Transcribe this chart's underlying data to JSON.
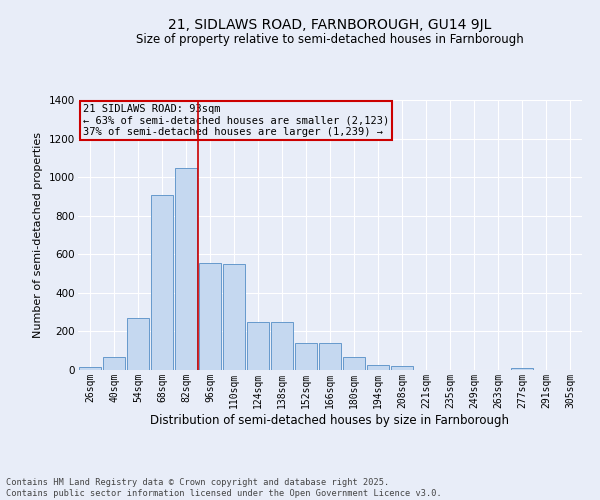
{
  "title_line1": "21, SIDLAWS ROAD, FARNBOROUGH, GU14 9JL",
  "title_line2": "Size of property relative to semi-detached houses in Farnborough",
  "xlabel": "Distribution of semi-detached houses by size in Farnborough",
  "ylabel": "Number of semi-detached properties",
  "categories": [
    "26sqm",
    "40sqm",
    "54sqm",
    "68sqm",
    "82sqm",
    "96sqm",
    "110sqm",
    "124sqm",
    "138sqm",
    "152sqm",
    "166sqm",
    "180sqm",
    "194sqm",
    "208sqm",
    "221sqm",
    "235sqm",
    "249sqm",
    "263sqm",
    "277sqm",
    "291sqm",
    "305sqm"
  ],
  "values": [
    18,
    70,
    270,
    905,
    1045,
    555,
    550,
    250,
    250,
    140,
    140,
    65,
    25,
    20,
    0,
    0,
    0,
    0,
    8,
    0,
    0
  ],
  "bar_color": "#c5d8f0",
  "bar_edge_color": "#6699cc",
  "bg_color": "#e8edf8",
  "grid_color": "#ffffff",
  "vline_color": "#cc0000",
  "annotation_title": "21 SIDLAWS ROAD: 93sqm",
  "annotation_line1": "← 63% of semi-detached houses are smaller (2,123)",
  "annotation_line2": "37% of semi-detached houses are larger (1,239) →",
  "annotation_box_color": "#cc0000",
  "ylim": [
    0,
    1400
  ],
  "yticks": [
    0,
    200,
    400,
    600,
    800,
    1000,
    1200,
    1400
  ],
  "footer_line1": "Contains HM Land Registry data © Crown copyright and database right 2025.",
  "footer_line2": "Contains public sector information licensed under the Open Government Licence v3.0."
}
